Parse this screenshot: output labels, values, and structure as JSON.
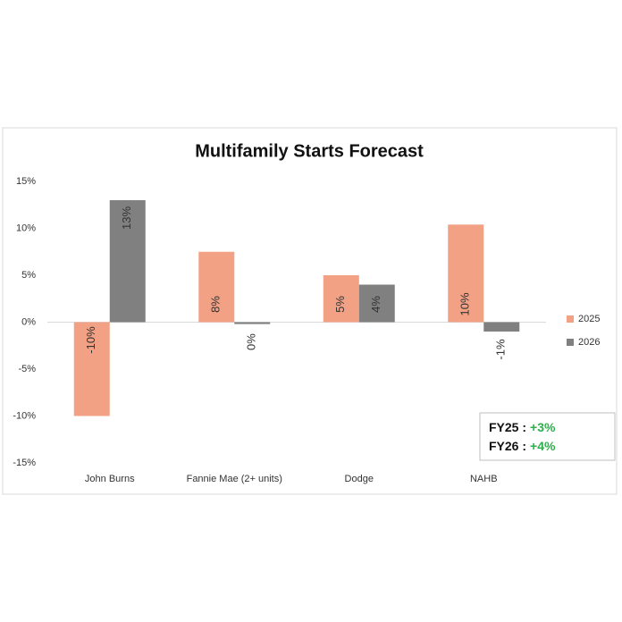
{
  "chart_data": {
    "type": "bar",
    "title": "Multifamily Starts Forecast",
    "categories": [
      "John Burns",
      "Fannie Mae (2+ units)",
      "Dodge",
      "NAHB"
    ],
    "series": [
      {
        "name": "2025",
        "color": "#f2a185",
        "values": [
          -10,
          7.5,
          5,
          10.4
        ],
        "value_labels": [
          "-10%",
          "8%",
          "5%",
          "10%"
        ]
      },
      {
        "name": "2026",
        "color": "#808080",
        "values": [
          13,
          -0.2,
          4,
          -1
        ],
        "value_labels": [
          "13%",
          "0%",
          "4%",
          "-1%"
        ]
      }
    ],
    "ylim": [
      -15,
      15
    ],
    "yticks": [
      {
        "value": 15,
        "label": "15%"
      },
      {
        "value": 10,
        "label": "10%"
      },
      {
        "value": 5,
        "label": "5%"
      },
      {
        "value": 0,
        "label": "0%"
      },
      {
        "value": -5,
        "label": "-5%"
      },
      {
        "value": -10,
        "label": "-10%"
      },
      {
        "value": -15,
        "label": "-15%"
      }
    ],
    "legend": "right",
    "annotations": [
      {
        "label": "FY25 :",
        "value": "+3%",
        "color": "#2db04b"
      },
      {
        "label": "FY26 :",
        "value": "+4%",
        "color": "#2db04b"
      }
    ]
  }
}
